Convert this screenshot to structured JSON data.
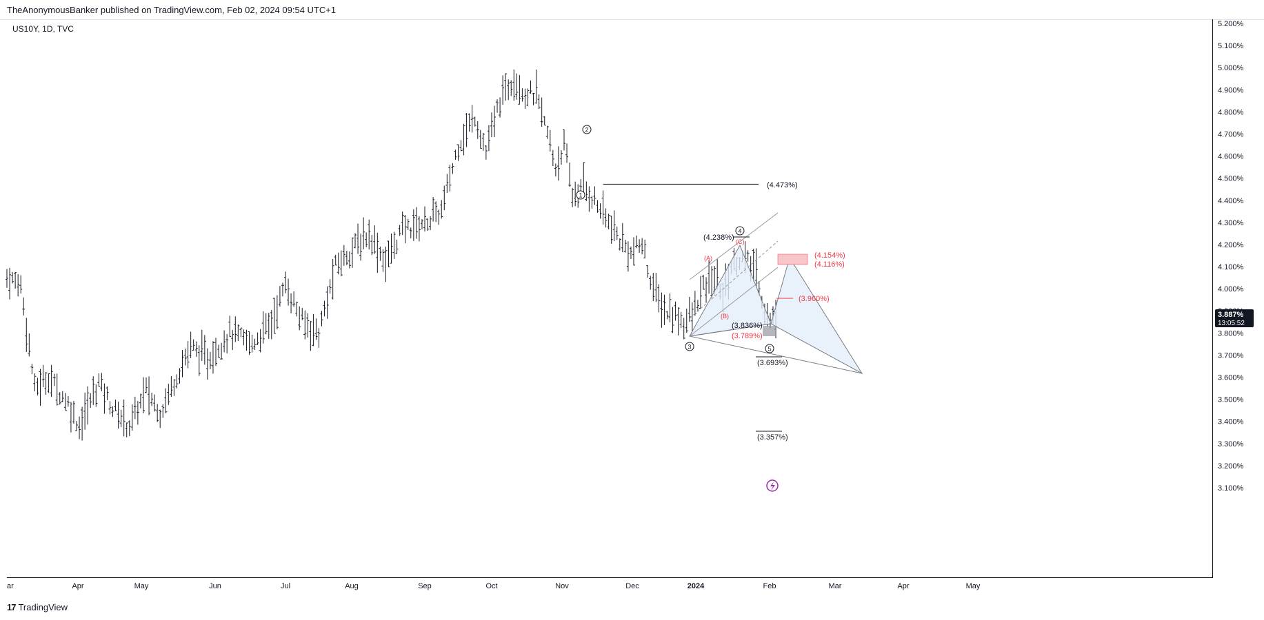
{
  "header": {
    "publisher_line": "TheAnonymousBanker published on TradingView.com, Feb 02, 2024 09:54 UTC+1"
  },
  "symbol": {
    "label": "US10Y, 1D, TVC"
  },
  "footer": {
    "brand": "TradingView",
    "brand_mark": "17"
  },
  "colors": {
    "bars": "#131722",
    "annotation_red": "#f23645",
    "zone_red": "#f7c6cb",
    "zone_gray": "#9598a1",
    "harmonic_fill": "#e3eefa",
    "price_badge_bg": "#131722",
    "price_badge_text": "#ffffff"
  },
  "price_badge": {
    "price": "3.887%",
    "countdown": "13:05:52"
  },
  "chart_data": {
    "type": "bar",
    "subtype": "ohlc",
    "symbol": "US10Y",
    "interval": "1D",
    "source": "TVC",
    "y_unit": "%",
    "ylim": [
      3.07,
      5.26
    ],
    "y_ticks": [
      "5.200%",
      "5.100%",
      "5.000%",
      "4.900%",
      "4.800%",
      "4.700%",
      "4.600%",
      "4.500%",
      "4.400%",
      "4.300%",
      "4.200%",
      "4.100%",
      "4.000%",
      "3.900%",
      "3.800%",
      "3.700%",
      "3.600%",
      "3.500%",
      "3.400%",
      "3.300%",
      "3.200%",
      "3.100%"
    ],
    "x_ticks": [
      "ar",
      "Apr",
      "May",
      "Jun",
      "Jul",
      "Aug",
      "Sep",
      "Oct",
      "Nov",
      "Dec",
      "2024",
      "Feb",
      "Mar",
      "Apr",
      "May"
    ],
    "grid": false,
    "last_price": 3.887,
    "anchors": [
      {
        "day": 0,
        "value": 4.05
      },
      {
        "day": 5,
        "value": 4.02
      },
      {
        "day": 10,
        "value": 3.55
      },
      {
        "day": 15,
        "value": 3.6
      },
      {
        "day": 22,
        "value": 3.48
      },
      {
        "day": 26,
        "value": 3.38
      },
      {
        "day": 33,
        "value": 3.58
      },
      {
        "day": 38,
        "value": 3.46
      },
      {
        "day": 44,
        "value": 3.38
      },
      {
        "day": 50,
        "value": 3.54
      },
      {
        "day": 55,
        "value": 3.44
      },
      {
        "day": 60,
        "value": 3.58
      },
      {
        "day": 66,
        "value": 3.74
      },
      {
        "day": 72,
        "value": 3.68
      },
      {
        "day": 80,
        "value": 3.8
      },
      {
        "day": 88,
        "value": 3.75
      },
      {
        "day": 95,
        "value": 3.85
      },
      {
        "day": 100,
        "value": 4.02
      },
      {
        "day": 106,
        "value": 3.85
      },
      {
        "day": 112,
        "value": 3.8
      },
      {
        "day": 118,
        "value": 4.1
      },
      {
        "day": 124,
        "value": 4.18
      },
      {
        "day": 130,
        "value": 4.25
      },
      {
        "day": 136,
        "value": 4.12
      },
      {
        "day": 142,
        "value": 4.27
      },
      {
        "day": 150,
        "value": 4.3
      },
      {
        "day": 156,
        "value": 4.35
      },
      {
        "day": 162,
        "value": 4.65
      },
      {
        "day": 168,
        "value": 4.78
      },
      {
        "day": 172,
        "value": 4.62
      },
      {
        "day": 177,
        "value": 4.85
      },
      {
        "day": 182,
        "value": 4.96
      },
      {
        "day": 186,
        "value": 4.88
      },
      {
        "day": 190,
        "value": 4.88
      },
      {
        "day": 194,
        "value": 4.7
      },
      {
        "day": 197,
        "value": 4.55
      },
      {
        "day": 200,
        "value": 4.65
      },
      {
        "day": 203,
        "value": 4.42
      },
      {
        "day": 207,
        "value": 4.46
      },
      {
        "day": 211,
        "value": 4.4
      },
      {
        "day": 216,
        "value": 4.3
      },
      {
        "day": 220,
        "value": 4.22
      },
      {
        "day": 224,
        "value": 4.16
      },
      {
        "day": 228,
        "value": 4.2
      },
      {
        "day": 232,
        "value": 4.0
      },
      {
        "day": 236,
        "value": 3.9
      },
      {
        "day": 240,
        "value": 3.88
      },
      {
        "day": 243,
        "value": 3.85
      },
      {
        "day": 246,
        "value": 3.88
      },
      {
        "day": 250,
        "value": 4.0
      },
      {
        "day": 254,
        "value": 4.05
      },
      {
        "day": 257,
        "value": 3.98
      },
      {
        "day": 260,
        "value": 4.1
      },
      {
        "day": 263,
        "value": 4.14
      },
      {
        "day": 266,
        "value": 4.12
      },
      {
        "day": 269,
        "value": 4.08
      },
      {
        "day": 272,
        "value": 3.9
      },
      {
        "day": 274,
        "value": 3.85
      },
      {
        "day": 276,
        "value": 3.88
      }
    ],
    "drawings": [
      {
        "kind": "hline",
        "label": "(4.473%)",
        "value": 4.473,
        "from_day": 214,
        "to_day": 260
      },
      {
        "kind": "label",
        "label": "(4.238%)",
        "value": 4.238
      },
      {
        "kind": "label",
        "label": "(4.154%)",
        "value": 4.154,
        "color": "red"
      },
      {
        "kind": "label",
        "label": "(4.116%)",
        "value": 4.116,
        "color": "red"
      },
      {
        "kind": "label",
        "label": "(3.960%)",
        "value": 3.96,
        "color": "red"
      },
      {
        "kind": "label",
        "label": "(3.836%)",
        "value": 3.836
      },
      {
        "kind": "label",
        "label": "(3.789%)",
        "value": 3.789,
        "color": "red"
      },
      {
        "kind": "label",
        "label": "(3.693%)",
        "value": 3.693
      },
      {
        "kind": "label",
        "label": "(3.357%)",
        "value": 3.357
      }
    ],
    "wave_labels": [
      {
        "label": "1",
        "style": "circled"
      },
      {
        "label": "2",
        "style": "circled"
      },
      {
        "label": "3",
        "style": "circled"
      },
      {
        "label": "4",
        "style": "circled"
      },
      {
        "label": "5",
        "style": "circled"
      },
      {
        "label": "(A)",
        "color": "red"
      },
      {
        "label": "(B)",
        "color": "red"
      },
      {
        "label": "(C)",
        "color": "red"
      }
    ]
  }
}
